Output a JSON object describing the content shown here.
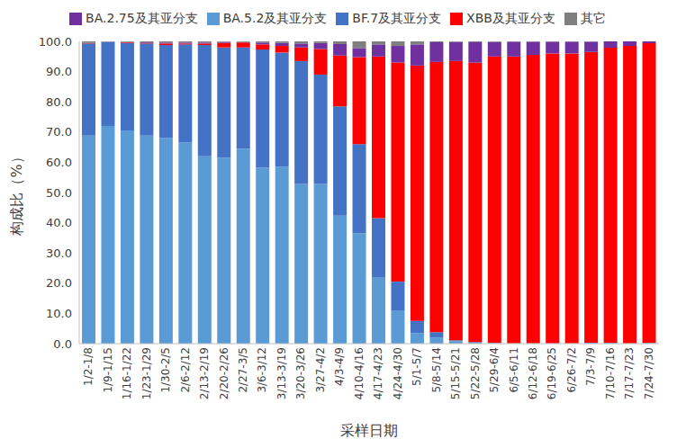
{
  "chart_data": {
    "type": "bar",
    "stacked": true,
    "grid": false,
    "legend": "top",
    "x_label": "采样日期",
    "y_label": "构成比（%）",
    "categories": [
      "1/2-1/8",
      "1/9-1/15",
      "1/16-1/22",
      "1/23-1/29",
      "1/30-2/5",
      "2/6-2/12",
      "2/13-2/19",
      "2/20-2/26",
      "2/27-3/5",
      "3/6-3/12",
      "3/13-3/19",
      "3/20-3/26",
      "3/27-4/2",
      "4/3-4/9",
      "4/10-4/16",
      "4/17-4/23",
      "4/24-4/30",
      "5/1-5/7",
      "5/8-5/14",
      "5/15-5/21",
      "5/22-5/28",
      "5/29-6/4",
      "6/5-6/11",
      "6/12-6/18",
      "6/19-6/25",
      "6/26-7/2",
      "7/3-7/9",
      "7/10-7/16",
      "7/17-7/23",
      "7/24-7/30"
    ],
    "ylim": [
      0,
      100
    ],
    "yticks": [
      {
        "value": 0,
        "label": "0.0"
      },
      {
        "value": 10,
        "label": "10.0"
      },
      {
        "value": 20,
        "label": "20.0"
      },
      {
        "value": 30,
        "label": "30.0"
      },
      {
        "value": 40,
        "label": "40.0"
      },
      {
        "value": 50,
        "label": "50.0"
      },
      {
        "value": 60,
        "label": "60.0"
      },
      {
        "value": 70,
        "label": "70.0"
      },
      {
        "value": 80,
        "label": "80.0"
      },
      {
        "value": 90,
        "label": "90.0"
      },
      {
        "value": 100,
        "label": "100.0"
      }
    ],
    "series": [
      {
        "name": "BA.5.2及其亚分支",
        "color": "#5b9bd5",
        "values": [
          68.8,
          72.0,
          70.5,
          68.8,
          68.0,
          66.5,
          62.0,
          61.5,
          64.5,
          58.2,
          58.5,
          52.8,
          52.8,
          42.3,
          36.5,
          22.0,
          11.0,
          3.5,
          2.0,
          0.8,
          0.3,
          0.2,
          0.1,
          0.1,
          0.1,
          0.1,
          0.3,
          0.3,
          0.1,
          0.2
        ]
      },
      {
        "name": "BF.7及其亚分支",
        "color": "#4472c4",
        "values": [
          30.5,
          27.8,
          29.0,
          30.5,
          30.8,
          32.5,
          36.8,
          36.5,
          33.5,
          39.1,
          37.8,
          40.7,
          36.2,
          36.2,
          29.5,
          19.5,
          9.5,
          4.0,
          1.8,
          0.3,
          0.2,
          0.1,
          0,
          0,
          0,
          0,
          0,
          0,
          0,
          0
        ]
      },
      {
        "name": "XBB及其亚分支",
        "color": "#ff0000",
        "values": [
          0.1,
          0,
          0.2,
          0.2,
          0.5,
          0.3,
          0.5,
          1.5,
          1.6,
          1.7,
          2.2,
          4.5,
          8.5,
          16.8,
          28.8,
          53.5,
          72.5,
          84.5,
          89.4,
          92.4,
          92.5,
          94.7,
          94.9,
          95.4,
          95.9,
          95.9,
          96.2,
          97.6,
          98.4,
          99.2
        ]
      },
      {
        "name": "BA.2.75及其亚分支",
        "color": "#7030a0",
        "values": [
          0.1,
          0.1,
          0.1,
          0.2,
          0.3,
          0.3,
          0.3,
          0.3,
          0.2,
          0.6,
          1.0,
          1.3,
          2.0,
          3.8,
          3.0,
          4.0,
          5.5,
          7.0,
          6.5,
          6.3,
          6.7,
          4.8,
          4.9,
          4.4,
          3.9,
          3.9,
          3.4,
          2.1,
          1.5,
          0.6
        ]
      },
      {
        "name": "其它",
        "color": "#7f7f7f",
        "values": [
          0.5,
          0.1,
          0.2,
          0.3,
          0.4,
          0.4,
          0.4,
          0.2,
          0.2,
          0.4,
          0.5,
          0.7,
          0.5,
          0.9,
          2.2,
          1.0,
          1.5,
          1.0,
          0.3,
          0.2,
          0.3,
          0.2,
          0.1,
          0.1,
          0.1,
          0.1,
          0.1,
          0,
          0,
          0
        ]
      }
    ]
  }
}
